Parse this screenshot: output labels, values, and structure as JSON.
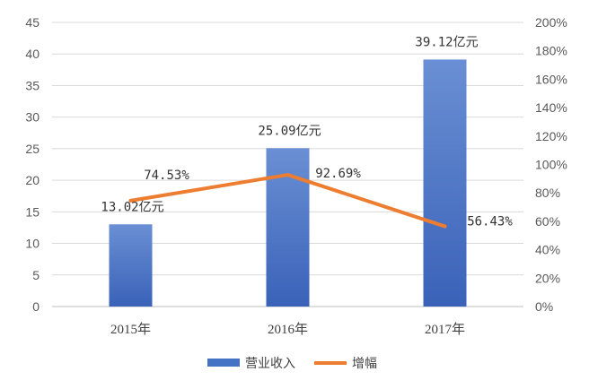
{
  "chart_data": {
    "type": "bar",
    "categories": [
      "2015年",
      "2016年",
      "2017年"
    ],
    "series": [
      {
        "name": "营业收入",
        "type": "bar",
        "axis": "left",
        "values": [
          13.02,
          25.09,
          39.12
        ],
        "labels": [
          "13.02亿元",
          "25.09亿元",
          "39.12亿元"
        ],
        "color": "#4472C4"
      },
      {
        "name": "增幅",
        "type": "line",
        "axis": "right",
        "values": [
          74.53,
          92.69,
          56.43
        ],
        "labels": [
          "74.53%",
          "92.69%",
          "56.43%"
        ],
        "color": "#ED7D31"
      }
    ],
    "y_left": {
      "ylim": [
        0,
        45
      ],
      "ticks": [
        "0",
        "5",
        "10",
        "15",
        "20",
        "25",
        "30",
        "35",
        "40",
        "45"
      ]
    },
    "y_right": {
      "ylim": [
        0,
        200
      ],
      "ticks": [
        "0%",
        "20%",
        "40%",
        "60%",
        "80%",
        "100%",
        "120%",
        "140%",
        "160%",
        "180%",
        "200%"
      ]
    },
    "legend": {
      "position": "bottom",
      "entries": [
        "营业收入",
        "增幅"
      ]
    },
    "grid": {
      "horizontal": true,
      "vertical": false
    }
  }
}
